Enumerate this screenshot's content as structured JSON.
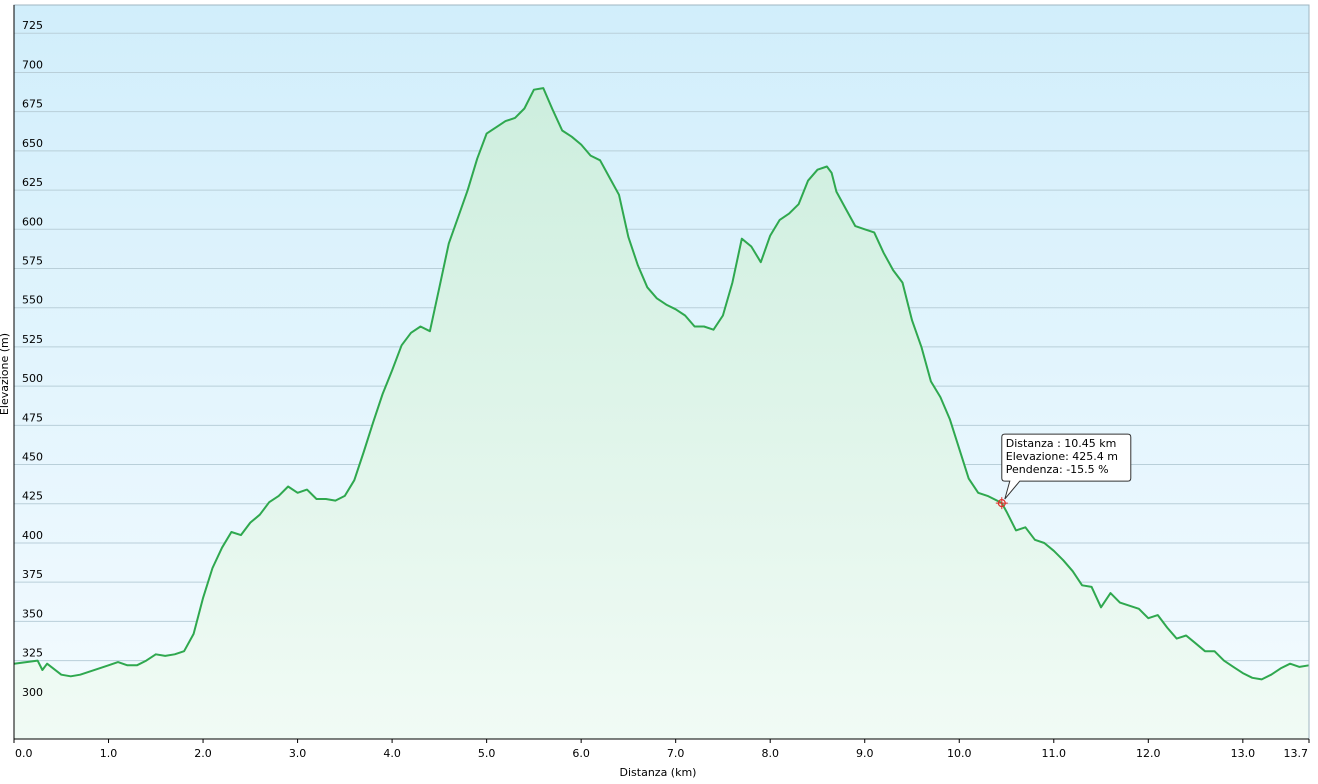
{
  "chart_data": {
    "type": "area",
    "xlabel": "Distanza  (km)",
    "ylabel": "Elevazione (m)",
    "xlim": [
      0,
      13.7
    ],
    "ylim": [
      275,
      743
    ],
    "x_ticks": [
      {
        "v": 0,
        "label": "0.0"
      },
      {
        "v": 1,
        "label": "1.0"
      },
      {
        "v": 2,
        "label": "2.0"
      },
      {
        "v": 3,
        "label": "3.0"
      },
      {
        "v": 4,
        "label": "4.0"
      },
      {
        "v": 5,
        "label": "5.0"
      },
      {
        "v": 6,
        "label": "6.0"
      },
      {
        "v": 7,
        "label": "7.0"
      },
      {
        "v": 8,
        "label": "8.0"
      },
      {
        "v": 9,
        "label": "9.0"
      },
      {
        "v": 10,
        "label": "10.0"
      },
      {
        "v": 11,
        "label": "11.0"
      },
      {
        "v": 12,
        "label": "12.0"
      },
      {
        "v": 13,
        "label": "13.0"
      },
      {
        "v": 13.7,
        "label": "13.7"
      }
    ],
    "y_ticks": [
      {
        "v": 300,
        "label": "300"
      },
      {
        "v": 325,
        "label": "325"
      },
      {
        "v": 350,
        "label": "350"
      },
      {
        "v": 375,
        "label": "375"
      },
      {
        "v": 400,
        "label": "400"
      },
      {
        "v": 425,
        "label": "425"
      },
      {
        "v": 450,
        "label": "450"
      },
      {
        "v": 475,
        "label": "475"
      },
      {
        "v": 500,
        "label": "500"
      },
      {
        "v": 525,
        "label": "525"
      },
      {
        "v": 550,
        "label": "550"
      },
      {
        "v": 575,
        "label": "575"
      },
      {
        "v": 600,
        "label": "600"
      },
      {
        "v": 625,
        "label": "625"
      },
      {
        "v": 650,
        "label": "650"
      },
      {
        "v": 675,
        "label": "675"
      },
      {
        "v": 700,
        "label": "700"
      },
      {
        "v": 725,
        "label": "725"
      }
    ],
    "grid": true,
    "series": [
      {
        "color": "#2fa84f",
        "x": [
          0,
          0.25,
          0.3,
          0.35,
          0.5,
          0.6,
          0.7,
          0.9,
          1.0,
          1.1,
          1.2,
          1.3,
          1.4,
          1.5,
          1.6,
          1.7,
          1.8,
          1.9,
          2.0,
          2.1,
          2.2,
          2.3,
          2.4,
          2.5,
          2.6,
          2.7,
          2.8,
          2.9,
          3.0,
          3.1,
          3.2,
          3.3,
          3.4,
          3.5,
          3.6,
          3.7,
          3.8,
          3.9,
          4.0,
          4.1,
          4.2,
          4.3,
          4.4,
          4.5,
          4.6,
          4.7,
          4.8,
          4.9,
          5.0,
          5.1,
          5.2,
          5.3,
          5.4,
          5.5,
          5.6,
          5.7,
          5.8,
          5.9,
          6.0,
          6.1,
          6.2,
          6.3,
          6.4,
          6.5,
          6.6,
          6.7,
          6.8,
          6.9,
          7.0,
          7.1,
          7.2,
          7.3,
          7.4,
          7.5,
          7.6,
          7.7,
          7.8,
          7.9,
          8.0,
          8.1,
          8.2,
          8.3,
          8.4,
          8.5,
          8.6,
          8.65,
          8.7,
          8.8,
          8.9,
          9.0,
          9.1,
          9.2,
          9.3,
          9.4,
          9.5,
          9.6,
          9.7,
          9.8,
          9.9,
          10.0,
          10.1,
          10.2,
          10.3,
          10.4,
          10.45,
          10.5,
          10.6,
          10.7,
          10.8,
          10.9,
          11.0,
          11.1,
          11.2,
          11.3,
          11.4,
          11.5,
          11.6,
          11.7,
          11.8,
          11.9,
          12.0,
          12.1,
          12.2,
          12.3,
          12.4,
          12.5,
          12.6,
          12.7,
          12.8,
          12.9,
          13.0,
          13.1,
          13.2,
          13.3,
          13.4,
          13.5,
          13.6,
          13.7
        ],
        "y": [
          323,
          325,
          319,
          323,
          316,
          315,
          316,
          320,
          322,
          324,
          322,
          322,
          325,
          329,
          328,
          329,
          331,
          342,
          365,
          384,
          397,
          407,
          405,
          413,
          418,
          426,
          430,
          436,
          432,
          434,
          428,
          428,
          427,
          430,
          440,
          458,
          477,
          495,
          510,
          526,
          534,
          538,
          535,
          563,
          591,
          608,
          625,
          645,
          661,
          665,
          669,
          671,
          677,
          689,
          690,
          676,
          663,
          659,
          654,
          647,
          644,
          633,
          622,
          595,
          577,
          563,
          556,
          552,
          549,
          545,
          538,
          538,
          536,
          545,
          566,
          594,
          589,
          579,
          596,
          606,
          610,
          616,
          631,
          638,
          640,
          636,
          624,
          613,
          602,
          600,
          598,
          585,
          574,
          566,
          542,
          525,
          503,
          493,
          479,
          460,
          441,
          432,
          430,
          427,
          425.4,
          420,
          408,
          410,
          402,
          400,
          395,
          389,
          382,
          373,
          372,
          359,
          368,
          362,
          360,
          358,
          352,
          354,
          346,
          339,
          341,
          336,
          331,
          331,
          325,
          321,
          317,
          314,
          313,
          316,
          320,
          323,
          321,
          322
        ]
      }
    ],
    "tooltip": {
      "x": 10.45,
      "y": 425.4,
      "lines": [
        "Distanza : 10.45 km",
        "Elevazione: 425.4 m",
        "Pendenza: -15.5 %"
      ]
    }
  }
}
